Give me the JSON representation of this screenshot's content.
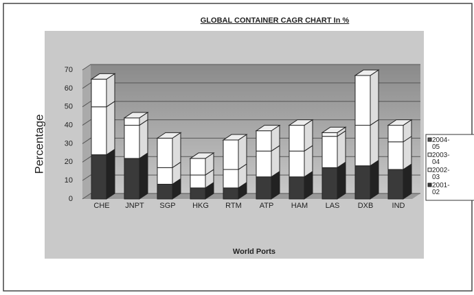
{
  "chart_data": {
    "type": "stacked_bar_3d",
    "title": "GLOBAL CONTAINER CAGR CHART In %",
    "x_label": "World Ports",
    "y_label": "Percentage",
    "categories": [
      "CHE",
      "JNPT",
      "SGP",
      "HKG",
      "RTM",
      "ATP",
      "HAM",
      "LAS",
      "DXB",
      "IND"
    ],
    "series": [
      {
        "name": "2001-02",
        "color": "#3a3a3a",
        "values": [
          24,
          22,
          8,
          6,
          6,
          12,
          12,
          17,
          18,
          16
        ]
      },
      {
        "name": "2002-03",
        "color": "#ffffff",
        "values": [
          26,
          18,
          9,
          7,
          10,
          14,
          14,
          17,
          22,
          15
        ]
      },
      {
        "name": "2003-04",
        "color": "#ffffff",
        "values": [
          15,
          4,
          16,
          9,
          16,
          11,
          14,
          2,
          27,
          9
        ]
      },
      {
        "name": "2004-05",
        "color": "#555555",
        "values": [
          0,
          0,
          0,
          0,
          0,
          0,
          0,
          0,
          0,
          0
        ]
      }
    ],
    "ylim": [
      0,
      70
    ],
    "yticks": [
      0,
      10,
      20,
      30,
      40,
      50,
      60,
      70
    ],
    "grid": true,
    "legend": "right"
  }
}
